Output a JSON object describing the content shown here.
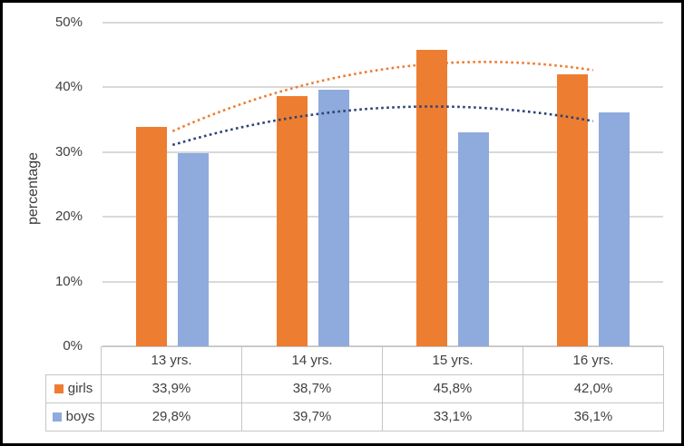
{
  "figure": {
    "background": "#FFFFFF",
    "border_color": "#000000",
    "text_color": "#404040",
    "gridline_color": "#D9D9D9",
    "table_border_color": "#C6C6C6"
  },
  "chart_data": {
    "type": "bar",
    "title": "",
    "xlabel": "",
    "ylabel": "percentage",
    "categories": [
      "13 yrs.",
      "14 yrs.",
      "15 yrs.",
      "16 yrs."
    ],
    "series": [
      {
        "name": "girls",
        "color": "#ED7D31",
        "values": [
          33.9,
          38.7,
          45.8,
          42.0
        ],
        "value_labels": [
          "33,9%",
          "38,7%",
          "45,8%",
          "42,0%"
        ]
      },
      {
        "name": "boys",
        "color": "#8FAADC",
        "values": [
          29.8,
          39.7,
          33.1,
          36.1
        ],
        "value_labels": [
          "29,8%",
          "39,7%",
          "33,1%",
          "36,1%"
        ]
      }
    ],
    "trendlines": [
      {
        "series": "girls",
        "type": "polynomial",
        "order": 2,
        "color": "#ED7D31",
        "style": "dotted"
      },
      {
        "series": "boys",
        "type": "polynomial",
        "order": 2,
        "color": "#2E4374",
        "style": "dotted"
      }
    ],
    "ylim": [
      0,
      50
    ],
    "ytick_step": 10,
    "ytick_labels": [
      "0%",
      "10%",
      "20%",
      "30%",
      "40%",
      "50%"
    ],
    "grid": true,
    "legend_position": "data-table-left",
    "data_table_shown": true
  }
}
